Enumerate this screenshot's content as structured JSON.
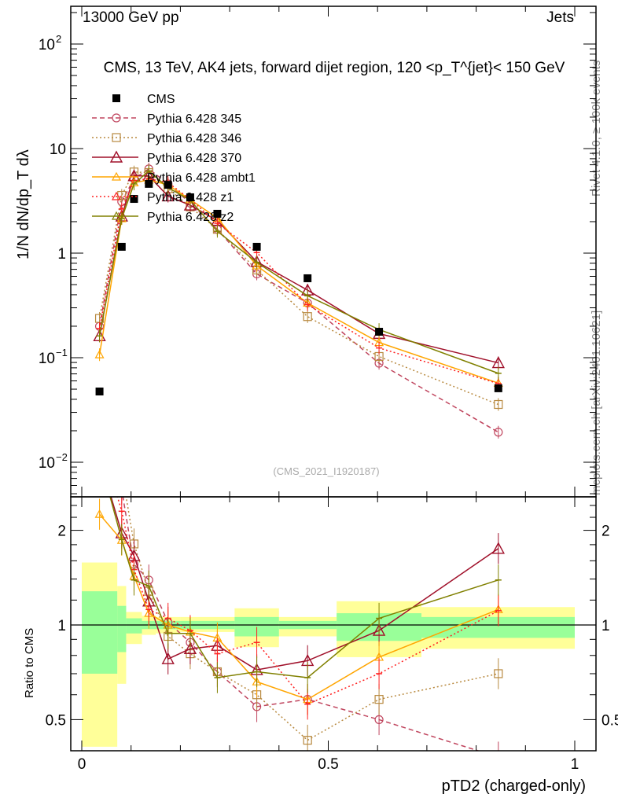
{
  "header": {
    "left": "13000 GeV pp",
    "right": "Jets"
  },
  "side": {
    "rivet": "Rivet 4.1.0, ≥ 100k events",
    "mcplots": "mcplots.cern.ch [arXiv:2401.10621]"
  },
  "chart_data": {
    "type": "line",
    "title": "CMS, 13 TeV, AK4 jets, forward dijet region, 120 <p_T^{jet}< 150 GeV",
    "analysis": "(CMS_2021_I1920187)",
    "xlabel": "pTD2 (charged-only)",
    "ylabel": "1/N dN/dp_T dλ",
    "ratio_ylabel": "Ratio to CMS",
    "xlim": [
      0,
      1
    ],
    "ylim": [
      0.0047,
      229
    ],
    "yscale": "log",
    "ratio_ylim": [
      0.4,
      2.54
    ],
    "xticks": [
      "0",
      "0.5",
      "1"
    ],
    "yticks": [
      {
        "v": 100,
        "l": "10",
        "e": "2"
      },
      {
        "v": 10,
        "l": "10",
        "e": ""
      },
      {
        "v": 1,
        "l": "1",
        "e": ""
      },
      {
        "v": 0.1,
        "l": "10",
        "e": "−1"
      },
      {
        "v": 0.01,
        "l": "10",
        "e": "−2"
      }
    ],
    "ratio_yticks": [
      "0.5",
      "1",
      "2"
    ],
    "bin_edges": [
      0,
      0.072,
      0.09,
      0.122,
      0.15,
      0.2,
      0.24,
      0.31,
      0.4,
      0.517,
      0.689,
      1.0
    ],
    "x": [
      0.036,
      0.081,
      0.106,
      0.136,
      0.175,
      0.22,
      0.275,
      0.355,
      0.458,
      0.603,
      0.845
    ],
    "data": {
      "name": "CMS",
      "values": [
        0.0475,
        1.15,
        3.3,
        4.6,
        4.5,
        3.42,
        2.38,
        1.15,
        0.575,
        0.177,
        0.051
      ],
      "band_inner": [
        [
          0.7,
          1.28
        ],
        [
          0.82,
          1.15
        ],
        [
          0.94,
          1.05
        ],
        [
          0.97,
          1.03
        ],
        [
          0.97,
          1.03
        ],
        [
          0.97,
          1.03
        ],
        [
          0.97,
          1.03
        ],
        [
          0.92,
          1.06
        ],
        [
          0.97,
          1.03
        ],
        [
          0.89,
          1.09
        ],
        [
          0.91,
          1.06
        ]
      ],
      "band_outer": [
        [
          0.41,
          1.58
        ],
        [
          0.65,
          1.33
        ],
        [
          0.87,
          1.1
        ],
        [
          0.93,
          1.07
        ],
        [
          0.94,
          1.06
        ],
        [
          0.95,
          1.06
        ],
        [
          0.95,
          1.06
        ],
        [
          0.85,
          1.13
        ],
        [
          0.92,
          1.06
        ],
        [
          0.79,
          1.19
        ],
        [
          0.84,
          1.14
        ]
      ]
    },
    "series": [
      {
        "name": "Pythia 6.428 345",
        "color": "#c0455e",
        "dash": "6,4",
        "marker": "circle",
        "ratio": [
          4.2,
          2.7,
          1.56,
          1.39,
          1.02,
          0.88,
          0.71,
          0.55,
          0.58,
          0.5,
          0.38
        ]
      },
      {
        "name": "Pythia 6.428 346",
        "color": "#b8893f",
        "dash": "2,3",
        "marker": "square",
        "ratio": [
          5.0,
          3.1,
          1.81,
          1.28,
          0.92,
          0.81,
          0.71,
          0.6,
          0.43,
          0.58,
          0.7
        ]
      },
      {
        "name": "Pythia 6.428 370",
        "color": "#a0102a",
        "dash": "",
        "marker": "triangle",
        "ratio": [
          3.4,
          1.96,
          1.66,
          1.19,
          0.78,
          0.84,
          0.86,
          0.72,
          0.77,
          0.96,
          1.75
        ]
      },
      {
        "name": "Pythia 6.428 ambt1",
        "color": "#ffa500",
        "dash": "",
        "marker": "triangle-small",
        "ratio": [
          2.25,
          1.86,
          1.43,
          1.09,
          1.0,
          0.95,
          0.91,
          0.66,
          0.58,
          0.79,
          1.12
        ]
      },
      {
        "name": "Pythia 6.428 z1",
        "color": "#ff2020",
        "dash": "2,3",
        "marker": "none",
        "ratio": [
          4.0,
          2.3,
          1.5,
          1.12,
          1.05,
          0.96,
          0.81,
          0.88,
          0.56,
          0.7,
          1.11
        ]
      },
      {
        "name": "Pythia 6.428 z2",
        "color": "#808000",
        "dash": "",
        "marker": "none",
        "ratio": [
          3.4,
          1.87,
          1.39,
          1.33,
          0.94,
          0.94,
          0.68,
          0.71,
          0.68,
          1.05,
          1.39
        ]
      }
    ]
  }
}
